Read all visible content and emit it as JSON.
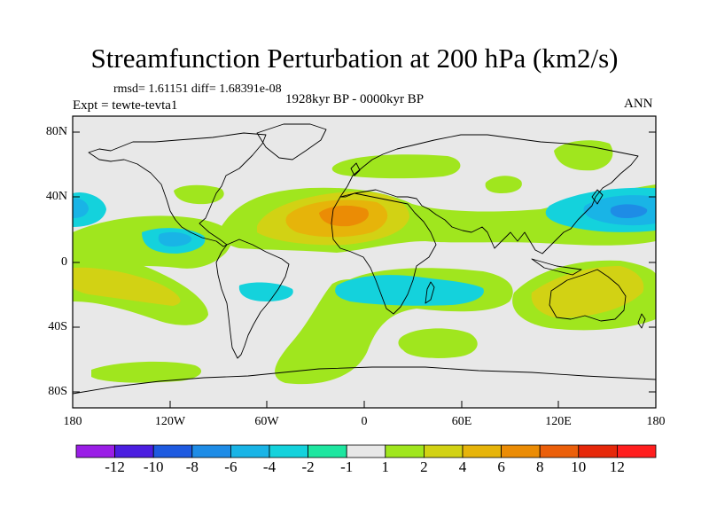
{
  "title": "Streamfunction Perturbation at 200 hPa (km2/s)",
  "stats": "rmsd= 1.61151 diff= 1.68391e-08",
  "period": "1928kyr BP - 0000kyr BP",
  "experiment": "Expt = tewte-tevta1",
  "season": "ANN",
  "map": {
    "projection": "cylindrical equidistant",
    "lon_range": [
      -180,
      180
    ],
    "lat_range": [
      -90,
      90
    ],
    "lat_ticks": [
      "80N",
      "40N",
      "0",
      "40S",
      "80S"
    ],
    "lon_ticks": [
      "180",
      "120W",
      "60W",
      "0",
      "60E",
      "120E",
      "180"
    ],
    "background_color": "#e8e8e8",
    "coastline_color": "#000000"
  },
  "colorbar": {
    "labels": [
      "-12",
      "-10",
      "-8",
      "-6",
      "-4",
      "-2",
      "-1",
      "1",
      "2",
      "4",
      "6",
      "8",
      "10",
      "12"
    ],
    "colors": [
      "#9a1ee6",
      "#4b1ee0",
      "#1e5ae0",
      "#1e8ce6",
      "#19b4e6",
      "#14d2dc",
      "#1ee6a0",
      "#e8e8e8",
      "#a0e61e",
      "#d2d214",
      "#e6b40a",
      "#eb8c05",
      "#eb5f0a",
      "#e6280a",
      "#ff1e1e"
    ]
  },
  "regions": [
    {
      "name": "n-atlantic-positive-max",
      "lon": -10,
      "lat": 28,
      "value": 8
    },
    {
      "name": "w-pacific-negative-min",
      "lon": 160,
      "lat": 32,
      "value": -6
    },
    {
      "name": "n-pacific-west-negative",
      "lon": -178,
      "lat": 38,
      "value": -6
    },
    {
      "name": "australia-positive",
      "lon": 140,
      "lat": -25,
      "value": 4
    },
    {
      "name": "s-pacific-positive",
      "lon": -150,
      "lat": -15,
      "value": 4
    },
    {
      "name": "tropical-atlantic-indian-negative",
      "lon": 20,
      "lat": -20,
      "value": -4
    },
    {
      "name": "e-pacific-negative",
      "lon": -125,
      "lat": 15,
      "value": -4
    },
    {
      "name": "s-indian-ocean-positive",
      "lon": 50,
      "lat": -50,
      "value": 2
    },
    {
      "name": "n-europe-positive",
      "lon": 0,
      "lat": 60,
      "value": 2
    },
    {
      "name": "siberia-positive",
      "lon": 150,
      "lat": 65,
      "value": 2
    }
  ]
}
